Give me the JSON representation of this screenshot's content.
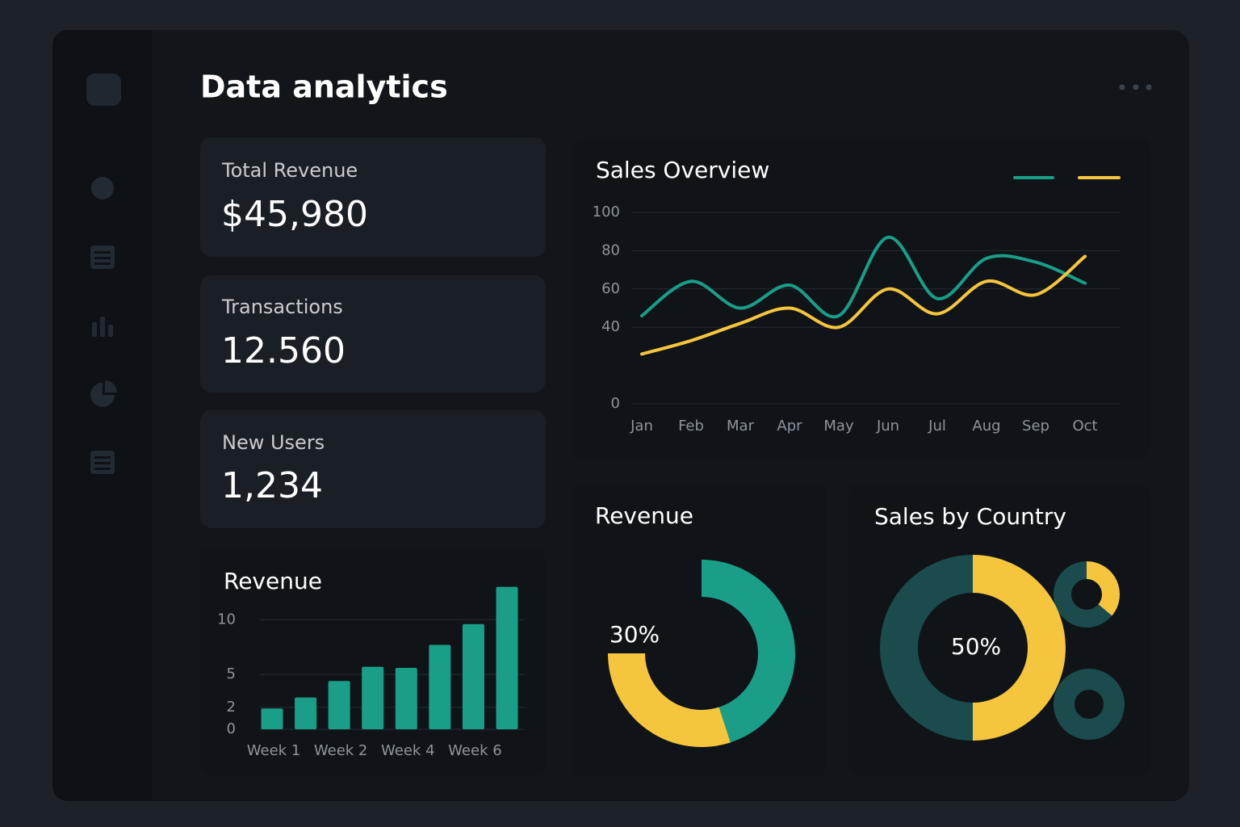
{
  "header": {
    "title": "Data analytics"
  },
  "stats": [
    {
      "label": "Total Revenue",
      "value": "$45,980"
    },
    {
      "label": "Transactions",
      "value": "12.560"
    },
    {
      "label": "New Users",
      "value": "1,234"
    }
  ],
  "chart_data": [
    {
      "type": "line",
      "title": "Sales Overview",
      "categories": [
        "Jan",
        "Feb",
        "Mar",
        "Apr",
        "May",
        "Jun",
        "Jul",
        "Aug",
        "Sep",
        "Oct"
      ],
      "series": [
        {
          "color": "#1a9e88",
          "values": [
            46,
            64,
            50,
            62,
            46,
            87,
            55,
            76,
            74,
            63
          ]
        },
        {
          "color": "#f5c53d",
          "values": [
            26,
            33,
            42,
            50,
            40,
            60,
            47,
            64,
            57,
            77
          ]
        }
      ],
      "ylim": [
        0,
        100
      ],
      "yticks": [
        0,
        40,
        60,
        80,
        100
      ],
      "grid": true
    },
    {
      "type": "bar",
      "title": "Revenue",
      "categories": [
        "Week 1",
        null,
        "Week 2",
        null,
        "Week 4",
        null,
        "Week 6",
        null
      ],
      "values": [
        1.9,
        2.9,
        4.4,
        5.7,
        5.6,
        7.7,
        9.6,
        13
      ],
      "color": "#1a9e88",
      "ylim": [
        0,
        14
      ],
      "yticks": [
        0,
        2,
        5,
        10
      ],
      "grid": true
    },
    {
      "type": "donut",
      "title": "Revenue",
      "values": [
        45,
        30
      ],
      "value_labels": [
        null,
        "30%"
      ],
      "colors": [
        "#1a9e88",
        "#f5c53d"
      ]
    },
    {
      "type": "donut",
      "title": "Sales by Country",
      "values": [
        50,
        50
      ],
      "value_labels": [
        "50%",
        null
      ],
      "colors": [
        "#f5c53d",
        "#1b4b4d"
      ]
    }
  ]
}
